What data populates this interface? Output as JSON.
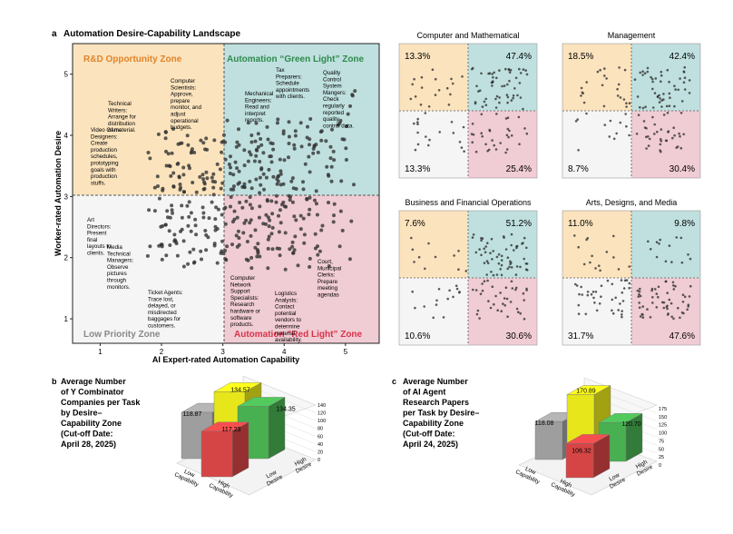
{
  "chart_data": [
    {
      "panel": "a",
      "type": "scatter",
      "title": "Automation Desire-Capability Landscape",
      "xlabel": "AI Expert-rated Automation Capability",
      "ylabel": "Worker-rated Automation Desire",
      "xlim": [
        0.55,
        5.55
      ],
      "ylim": [
        0.6,
        5.5
      ],
      "xticks": [
        "1",
        "2",
        "3",
        "4",
        "5"
      ],
      "yticks": [
        "1",
        "2",
        "3",
        "4",
        "5"
      ],
      "threshold": {
        "x": 3,
        "y": 3
      },
      "zones": {
        "rd": "R&D Opportunity Zone",
        "green": "Automation “Green Light” Zone",
        "low": "Low Priority Zone",
        "red": "Automation “Red Light” Zone"
      },
      "colors": {
        "rd": "#fbe3bd",
        "green": "#bfe0df",
        "low": "#f5f5f5",
        "red": "#f0ccd4",
        "point": "#333333"
      },
      "annotations": [
        {
          "text": "Video Game Designers: Create production schedules, prototyping goals with production stuffs."
        },
        {
          "text": "Technical Writers: Arrange for distribution of material."
        },
        {
          "text": "Computer Scientists: Approve, prepare monitor, and adjust operational budgets."
        },
        {
          "text": "Mechanical Engineers: Read and interpret reports."
        },
        {
          "text": "Tax Preparers: Schedule appointments with clients."
        },
        {
          "text": "Quality Control System Mangers: Check regularly reported quality control data."
        },
        {
          "text": "Art Directors: Present final layouts to clients."
        },
        {
          "text": "Media Technical Managers: Observe pictures through monitors."
        },
        {
          "text": "Ticket Agents: Trace lost, delayed, or misdirected baggages for customers."
        },
        {
          "text": "Computer Network Support Specialists: Research hardware or software products."
        },
        {
          "text": "Logistics Analysts: Contact potential vendors to determine material availability."
        },
        {
          "text": "Court, Municipal Clerks: Prepare meeting agendas"
        }
      ]
    },
    {
      "type": "scatter",
      "panels": [
        {
          "title": "Computer and Mathematical",
          "pct": [
            "13.3%",
            "47.4%",
            "13.3%",
            "25.4%"
          ]
        },
        {
          "title": "Management",
          "pct": [
            "18.5%",
            "42.4%",
            "8.7%",
            "30.4%"
          ]
        },
        {
          "title": "Business and Financial Operations",
          "pct": [
            "7.6%",
            "51.2%",
            "10.6%",
            "30.6%"
          ]
        },
        {
          "title": "Arts, Designs, and Media",
          "pct": [
            "11.0%",
            "9.8%",
            "31.7%",
            "47.6%"
          ]
        }
      ]
    },
    {
      "panel": "b",
      "type": "bar",
      "title": "Average Number of Y Combinator Companies per Task by Desire–Capability Zone (Cut-off Date: April 28, 2025)",
      "title_lines": [
        "Average Number",
        "of Y Combinator",
        "Companies per Task",
        "by Desire–",
        "Capability Zone",
        "(Cut-off Date:",
        "April 28, 2025)"
      ],
      "axis_labels": [
        "Low Capability",
        "High Capability",
        "Low Desire",
        "High Desire"
      ],
      "zticks": [
        "0",
        "20",
        "40",
        "60",
        "80",
        "100",
        "120",
        "140"
      ],
      "bars": [
        {
          "capability": "Low",
          "desire": "High",
          "value": 118.87
        },
        {
          "capability": "High",
          "desire": "High",
          "value": 134.57
        },
        {
          "capability": "High",
          "desire": "Low",
          "value": 134.35
        },
        {
          "capability": "Low",
          "desire": "Low",
          "value": 117.23
        }
      ]
    },
    {
      "panel": "c",
      "type": "bar",
      "title": "Average Number of AI Agent Research Papers per Task by Desire–Capability Zone (Cut-off Date: April 24, 2025)",
      "title_lines": [
        "Average Number",
        "of AI Agent",
        "Research Papers",
        "per Task by Desire–",
        "Capability Zone",
        "(Cut-off Date:",
        "April 24, 2025)"
      ],
      "axis_labels": [
        "Low Capability",
        "High Capability",
        "Low Desire",
        "High Desire"
      ],
      "zticks": [
        "0",
        "25",
        "50",
        "75",
        "100",
        "125",
        "150",
        "175"
      ],
      "bars": [
        {
          "capability": "Low",
          "desire": "High",
          "value": 118.08
        },
        {
          "capability": "High",
          "desire": "High",
          "value": 170.89
        },
        {
          "capability": "High",
          "desire": "Low",
          "value": 120.7
        },
        {
          "capability": "Low",
          "desire": "Low",
          "value": 106.32
        }
      ]
    }
  ]
}
